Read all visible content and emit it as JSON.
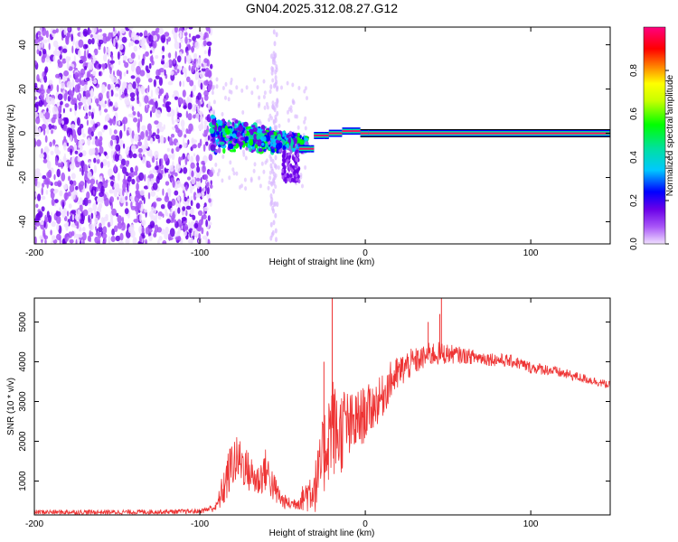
{
  "title": "GN04.2025.312.08.27.G12",
  "chart_data": [
    {
      "type": "heatmap",
      "title": "GN04.2025.312.08.27.G12",
      "xlabel": "Height of straight line (km)",
      "ylabel": "Frequency (Hz)",
      "xlim": [
        -200,
        148
      ],
      "ylim": [
        -50,
        48
      ],
      "xticks": [
        -200,
        -100,
        0,
        100
      ],
      "yticks": [
        -40,
        -20,
        0,
        20,
        40
      ],
      "colorbar": {
        "label": "Normalized spectral amplitude",
        "range": [
          0,
          1
        ],
        "ticks": [
          0.0,
          0.2,
          0.4,
          0.6,
          0.8
        ],
        "colors": [
          "#f0e0ff",
          "#a855f7",
          "#6a00e8",
          "#0000ff",
          "#00c8ff",
          "#00e0a0",
          "#00ff00",
          "#c8ff00",
          "#ffff00",
          "#ff8000",
          "#ff0000",
          "#ff0080"
        ]
      },
      "noise_region_x": [
        -200,
        -93
      ],
      "transition_region_x": [
        -93,
        -35
      ],
      "steady_peak_frequency_hz": 0,
      "steady_peak_amplitude": 0.95
    },
    {
      "type": "line",
      "xlabel": "Height of straight line (km)",
      "ylabel": "SNR (10 * v/v)",
      "xlim": [
        -200,
        148
      ],
      "ylim": [
        150,
        5600
      ],
      "xticks": [
        -200,
        -100,
        0,
        100
      ],
      "yticks": [
        1000,
        2000,
        3000,
        4000,
        5000
      ],
      "series": [
        {
          "name": "SNR",
          "color": "#ee3333",
          "x": [
            -200,
            -150,
            -120,
            -100,
            -90,
            -85,
            -80,
            -75,
            -70,
            -65,
            -60,
            -55,
            -50,
            -45,
            -40,
            -35,
            -30,
            -27,
            -25,
            -22,
            -20,
            -18,
            -15,
            -12,
            -10,
            -5,
            0,
            5,
            10,
            15,
            20,
            25,
            30,
            35,
            40,
            45,
            50,
            60,
            70,
            80,
            90,
            100,
            110,
            120,
            130,
            140,
            148
          ],
          "values": [
            220,
            220,
            230,
            240,
            350,
            900,
            1500,
            1500,
            1200,
            1000,
            1300,
            800,
            500,
            420,
            480,
            700,
            900,
            1300,
            1700,
            2200,
            2500,
            2200,
            2200,
            2500,
            2300,
            2500,
            2700,
            2900,
            3100,
            3500,
            3700,
            3900,
            4000,
            4100,
            4200,
            4200,
            4200,
            4150,
            4100,
            4050,
            4000,
            3850,
            3800,
            3700,
            3600,
            3500,
            3400
          ],
          "noise": [
            60,
            60,
            60,
            60,
            120,
            550,
            650,
            600,
            500,
            450,
            550,
            400,
            200,
            150,
            200,
            500,
            700,
            900,
            1100,
            1200,
            1300,
            1200,
            1100,
            1000,
            900,
            800,
            700,
            600,
            550,
            500,
            450,
            400,
            350,
            300,
            320,
            300,
            250,
            200,
            180,
            170,
            160,
            150,
            140,
            130,
            120,
            110,
            100
          ]
        }
      ],
      "spikes": [
        {
          "x": -20,
          "value": 5600
        },
        {
          "x": 46,
          "value": 5600
        },
        {
          "x": 45,
          "value": 5200
        },
        {
          "x": 38,
          "value": 5000
        },
        {
          "x": -25,
          "value": 4000
        }
      ]
    }
  ]
}
